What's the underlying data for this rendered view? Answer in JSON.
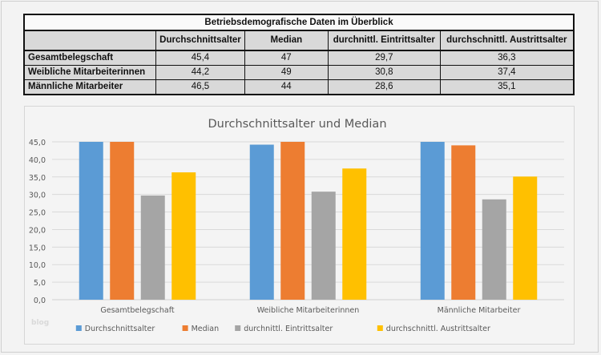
{
  "table": {
    "title": "Betriebsdemografische Daten im Überblick",
    "columns": [
      "",
      "Durchschnittsalter",
      "Median",
      "durchnittl. Eintrittsalter",
      "durchschnittl. Austrittsalter"
    ],
    "rows": [
      {
        "label": "Gesamtbelegschaft",
        "values": [
          "45,4",
          "47",
          "29,7",
          "36,3"
        ]
      },
      {
        "label": "Weibliche Mitarbeiterinnen",
        "values": [
          "44,2",
          "49",
          "30,8",
          "37,4"
        ]
      },
      {
        "label": "Männliche Mitarbeiter",
        "values": [
          "46,5",
          "44",
          "28,6",
          "35,1"
        ]
      }
    ]
  },
  "watermark": "blog",
  "chart_data": {
    "type": "bar",
    "title": "Durchschnittsalter und Median",
    "xlabel": "",
    "ylabel": "",
    "categories": [
      "Gesamtbelegschaft",
      "Weibliche Mitarbeiterinnen",
      "Männliche Mitarbeiter"
    ],
    "series": [
      {
        "name": "Durchschnittsalter",
        "color": "#5b9bd5",
        "values": [
          45.4,
          44.2,
          46.5
        ]
      },
      {
        "name": "Median",
        "color": "#ed7d31",
        "values": [
          47,
          49,
          44
        ]
      },
      {
        "name": "durchnittl. Eintrittsalter",
        "color": "#a5a5a5",
        "values": [
          29.7,
          30.8,
          28.6
        ]
      },
      {
        "name": "durchschnittl. Austrittsalter",
        "color": "#ffc000",
        "values": [
          36.3,
          37.4,
          35.1
        ]
      }
    ],
    "legend_labels": [
      "Durchschnittsalter",
      "Median",
      "durchnittl. Eintrittsalter",
      "durchschnittl. Austrittsalter"
    ],
    "ylim": [
      0,
      45
    ],
    "yticks": [
      "0,0",
      "5,0",
      "10,0",
      "15,0",
      "20,0",
      "25,0",
      "30,0",
      "35,0",
      "40,0",
      "45,0"
    ],
    "ytick_values": [
      0,
      5,
      10,
      15,
      20,
      25,
      30,
      35,
      40,
      45
    ],
    "grid": true,
    "legend_position": "bottom"
  }
}
